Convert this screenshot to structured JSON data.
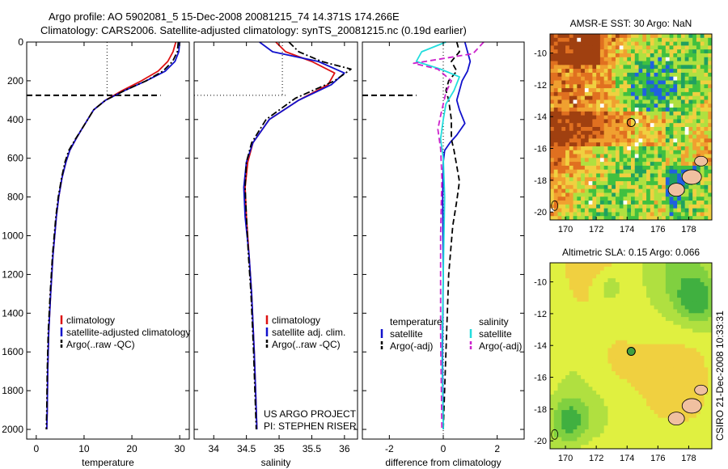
{
  "title_line1": "Argo profile: AO 5902081_5 15-Dec-2008 20081215_74 14.371S 174.266E",
  "title_line2": "Climatology: CARS2006. Satellite-adjusted climatology: synTS_20081215.nc (0.19d earlier)",
  "credit_vertical": "CSIRO 21-Dec-2008 10:33:31",
  "colors": {
    "climatology": "#dd1111",
    "satellite": "#1111cc",
    "argo": "#000000",
    "sal_satellite": "#22dddd",
    "sal_argo": "#cc22cc"
  },
  "chart_data": [
    {
      "id": "temperature",
      "type": "line",
      "xlabel": "temperature",
      "ylabel": "",
      "xlim": [
        -2,
        32
      ],
      "ylim": [
        2050,
        0
      ],
      "xticks": [
        0,
        10,
        20,
        30
      ],
      "yticks": [
        0,
        200,
        400,
        600,
        800,
        1000,
        1200,
        1400,
        1600,
        1800,
        2000
      ],
      "series": [
        {
          "name": "climatology",
          "style": "solid",
          "color": "#dd1111",
          "x": [
            29.2,
            28.6,
            27.5,
            25.5,
            22.0,
            18.0,
            14.5,
            12.0,
            9.5,
            8.3,
            7.0,
            6.2,
            5.4,
            4.7,
            4.2,
            3.5,
            3.0,
            2.6,
            2.4,
            2.3,
            2.2
          ],
          "y": [
            0,
            50,
            100,
            150,
            200,
            250,
            300,
            350,
            450,
            500,
            560,
            620,
            700,
            800,
            900,
            1100,
            1300,
            1500,
            1700,
            1900,
            2000
          ]
        },
        {
          "name": "satellite-adjusted climatology",
          "style": "solid",
          "color": "#1111cc",
          "x": [
            30.0,
            29.8,
            29.0,
            27.0,
            23.0,
            18.5,
            14.5,
            12.0,
            9.5,
            8.3,
            7.0,
            6.2,
            5.4,
            4.7,
            4.2,
            3.5,
            3.0,
            2.6,
            2.4,
            2.3,
            2.2
          ],
          "y": [
            0,
            50,
            100,
            150,
            200,
            250,
            300,
            350,
            450,
            500,
            560,
            620,
            700,
            800,
            900,
            1100,
            1300,
            1500,
            1700,
            1900,
            2000
          ]
        },
        {
          "name": "Argo(..raw -QC)",
          "style": "dashdot",
          "color": "#000000",
          "x": [
            29.7,
            29.5,
            28.5,
            26.5,
            23.0,
            18.5,
            14.5,
            12.0,
            9.5,
            8.2,
            6.8,
            6.0,
            5.3,
            4.6,
            4.1,
            3.4,
            2.9,
            2.5,
            2.3,
            2.2,
            2.1
          ],
          "y": [
            0,
            50,
            100,
            150,
            200,
            250,
            300,
            350,
            450,
            500,
            560,
            620,
            700,
            800,
            900,
            1100,
            1300,
            1500,
            1700,
            1900,
            2000
          ]
        }
      ],
      "legend": [
        "climatology",
        "satellite-adjusted climatology",
        "Argo(..raw -QC)"
      ],
      "legend_location": "lower-right"
    },
    {
      "id": "salinity",
      "type": "line",
      "xlabel": "salinity",
      "ylabel": "",
      "xlim": [
        33.7,
        36.2
      ],
      "ylim": [
        2050,
        0
      ],
      "xticks": [
        34,
        34.5,
        35,
        35.5,
        36
      ],
      "xticklabels": [
        "34",
        "34.5",
        "35",
        "35.5",
        "36"
      ],
      "series": [
        {
          "name": "climatology",
          "style": "solid",
          "color": "#dd1111",
          "x": [
            34.95,
            35.1,
            35.5,
            35.85,
            35.75,
            35.3,
            34.85,
            34.6,
            34.52,
            34.48,
            34.5,
            34.54,
            34.58,
            34.62,
            34.64,
            34.66
          ],
          "y": [
            0,
            50,
            100,
            160,
            220,
            300,
            400,
            520,
            620,
            750,
            900,
            1100,
            1300,
            1600,
            1800,
            2000
          ]
        },
        {
          "name": "satellite adj. clim.",
          "style": "solid",
          "color": "#1111cc",
          "x": [
            34.7,
            34.9,
            35.6,
            36.0,
            35.8,
            35.3,
            34.85,
            34.6,
            34.5,
            34.46,
            34.48,
            34.54,
            34.58,
            34.62,
            34.64,
            34.66
          ],
          "y": [
            0,
            50,
            100,
            160,
            220,
            300,
            400,
            520,
            620,
            750,
            900,
            1100,
            1300,
            1600,
            1800,
            2000
          ]
        },
        {
          "name": "Argo(..raw -QC)",
          "style": "dashdot",
          "color": "#000000",
          "x": [
            35.15,
            35.3,
            35.65,
            36.1,
            35.85,
            35.25,
            34.8,
            34.58,
            34.5,
            34.48,
            34.5,
            34.53,
            34.57,
            34.61,
            34.63,
            34.65
          ],
          "y": [
            0,
            50,
            100,
            140,
            200,
            290,
            400,
            520,
            620,
            750,
            900,
            1100,
            1300,
            1600,
            1800,
            2000
          ]
        }
      ],
      "legend": [
        "climatology",
        "satellite adj. clim.",
        "Argo(..raw -QC)"
      ],
      "legend_location": "lower-right",
      "annotation": [
        "US ARGO PROJECT",
        "PI: STEPHEN RISER"
      ]
    },
    {
      "id": "difference",
      "type": "line",
      "xlabel": "difference from climatology",
      "ylabel": "",
      "xlim": [
        -3,
        3
      ],
      "ylim": [
        2050,
        0
      ],
      "xticks": [
        -2,
        0,
        2
      ],
      "series": [
        {
          "name": "temperature satellite",
          "style": "solid",
          "color": "#1111cc",
          "x": [
            0.8,
            0.9,
            1.0,
            0.9,
            0.7,
            0.6,
            0.5,
            0.6,
            0.8,
            0.5,
            0.25,
            0.05,
            0.0,
            -0.02,
            0.0,
            -0.03,
            0.0
          ],
          "y": [
            0,
            50,
            100,
            150,
            200,
            250,
            300,
            350,
            420,
            480,
            520,
            560,
            620,
            800,
            1200,
            1600,
            2000
          ]
        },
        {
          "name": "temperature Argo(-adj)",
          "style": "dashed",
          "color": "#000000",
          "x": [
            0.5,
            0.6,
            0.3,
            0.5,
            0.2,
            0.1,
            0.2,
            0.3,
            0.3,
            0.4,
            0.5,
            0.6,
            0.5,
            0.35,
            0.2,
            0.1,
            0.0
          ],
          "y": [
            0,
            50,
            100,
            150,
            200,
            250,
            300,
            400,
            500,
            560,
            640,
            720,
            820,
            950,
            1200,
            1600,
            2000
          ]
        },
        {
          "name": "salinity satellite",
          "style": "solid",
          "color": "#22dddd",
          "x": [
            0.1,
            -0.8,
            -1.0,
            -0.1,
            0.6,
            0.4,
            0.1,
            0.0,
            -0.1,
            0.0,
            0.05,
            0.0,
            -0.05,
            0.0
          ],
          "y": [
            0,
            50,
            100,
            140,
            180,
            250,
            320,
            400,
            500,
            600,
            800,
            1200,
            1600,
            2000
          ]
        },
        {
          "name": "salinity Argo(-adj)",
          "style": "dashed",
          "color": "#cc22cc",
          "x": [
            1.5,
            1.1,
            -1.1,
            -0.2,
            0.3,
            0.1,
            0.0,
            -0.1,
            -0.2,
            -0.1,
            -0.05,
            -0.1,
            -0.1,
            -0.05
          ],
          "y": [
            0,
            60,
            110,
            140,
            200,
            260,
            320,
            380,
            450,
            550,
            700,
            1000,
            1500,
            2000
          ]
        },
        {
          "name": "reference marker",
          "style": "dashed",
          "color": "#000000",
          "x": [
            -3.0,
            -1.0
          ],
          "y": [
            275,
            275
          ]
        }
      ],
      "legend": [
        "temperature",
        "satellite",
        "Argo(-adj)",
        "salinity",
        "satellite",
        "Argo(-adj)"
      ],
      "legend_location": "lower-center"
    }
  ],
  "map_sst": {
    "title": "AMSR-E SST: 30 Argo: NaN",
    "xlim": [
      169,
      179.5
    ],
    "ylim": [
      -20.5,
      -8.8
    ],
    "xticks": [
      170,
      172,
      174,
      176,
      178
    ],
    "yticks": [
      -10,
      -12,
      -14,
      -16,
      -18,
      -20
    ],
    "argo_lon": 174.266,
    "argo_lat": -14.371
  },
  "map_sla": {
    "title": "Altimetric SLA: 0.15 Argo: 0.066",
    "xlim": [
      169,
      179.5
    ],
    "ylim": [
      -20.5,
      -8.8
    ],
    "xticks": [
      170,
      172,
      174,
      176,
      178
    ],
    "yticks": [
      -10,
      -12,
      -14,
      -16,
      -18,
      -20
    ],
    "argo_lon": 174.266,
    "argo_lat": -14.371
  }
}
